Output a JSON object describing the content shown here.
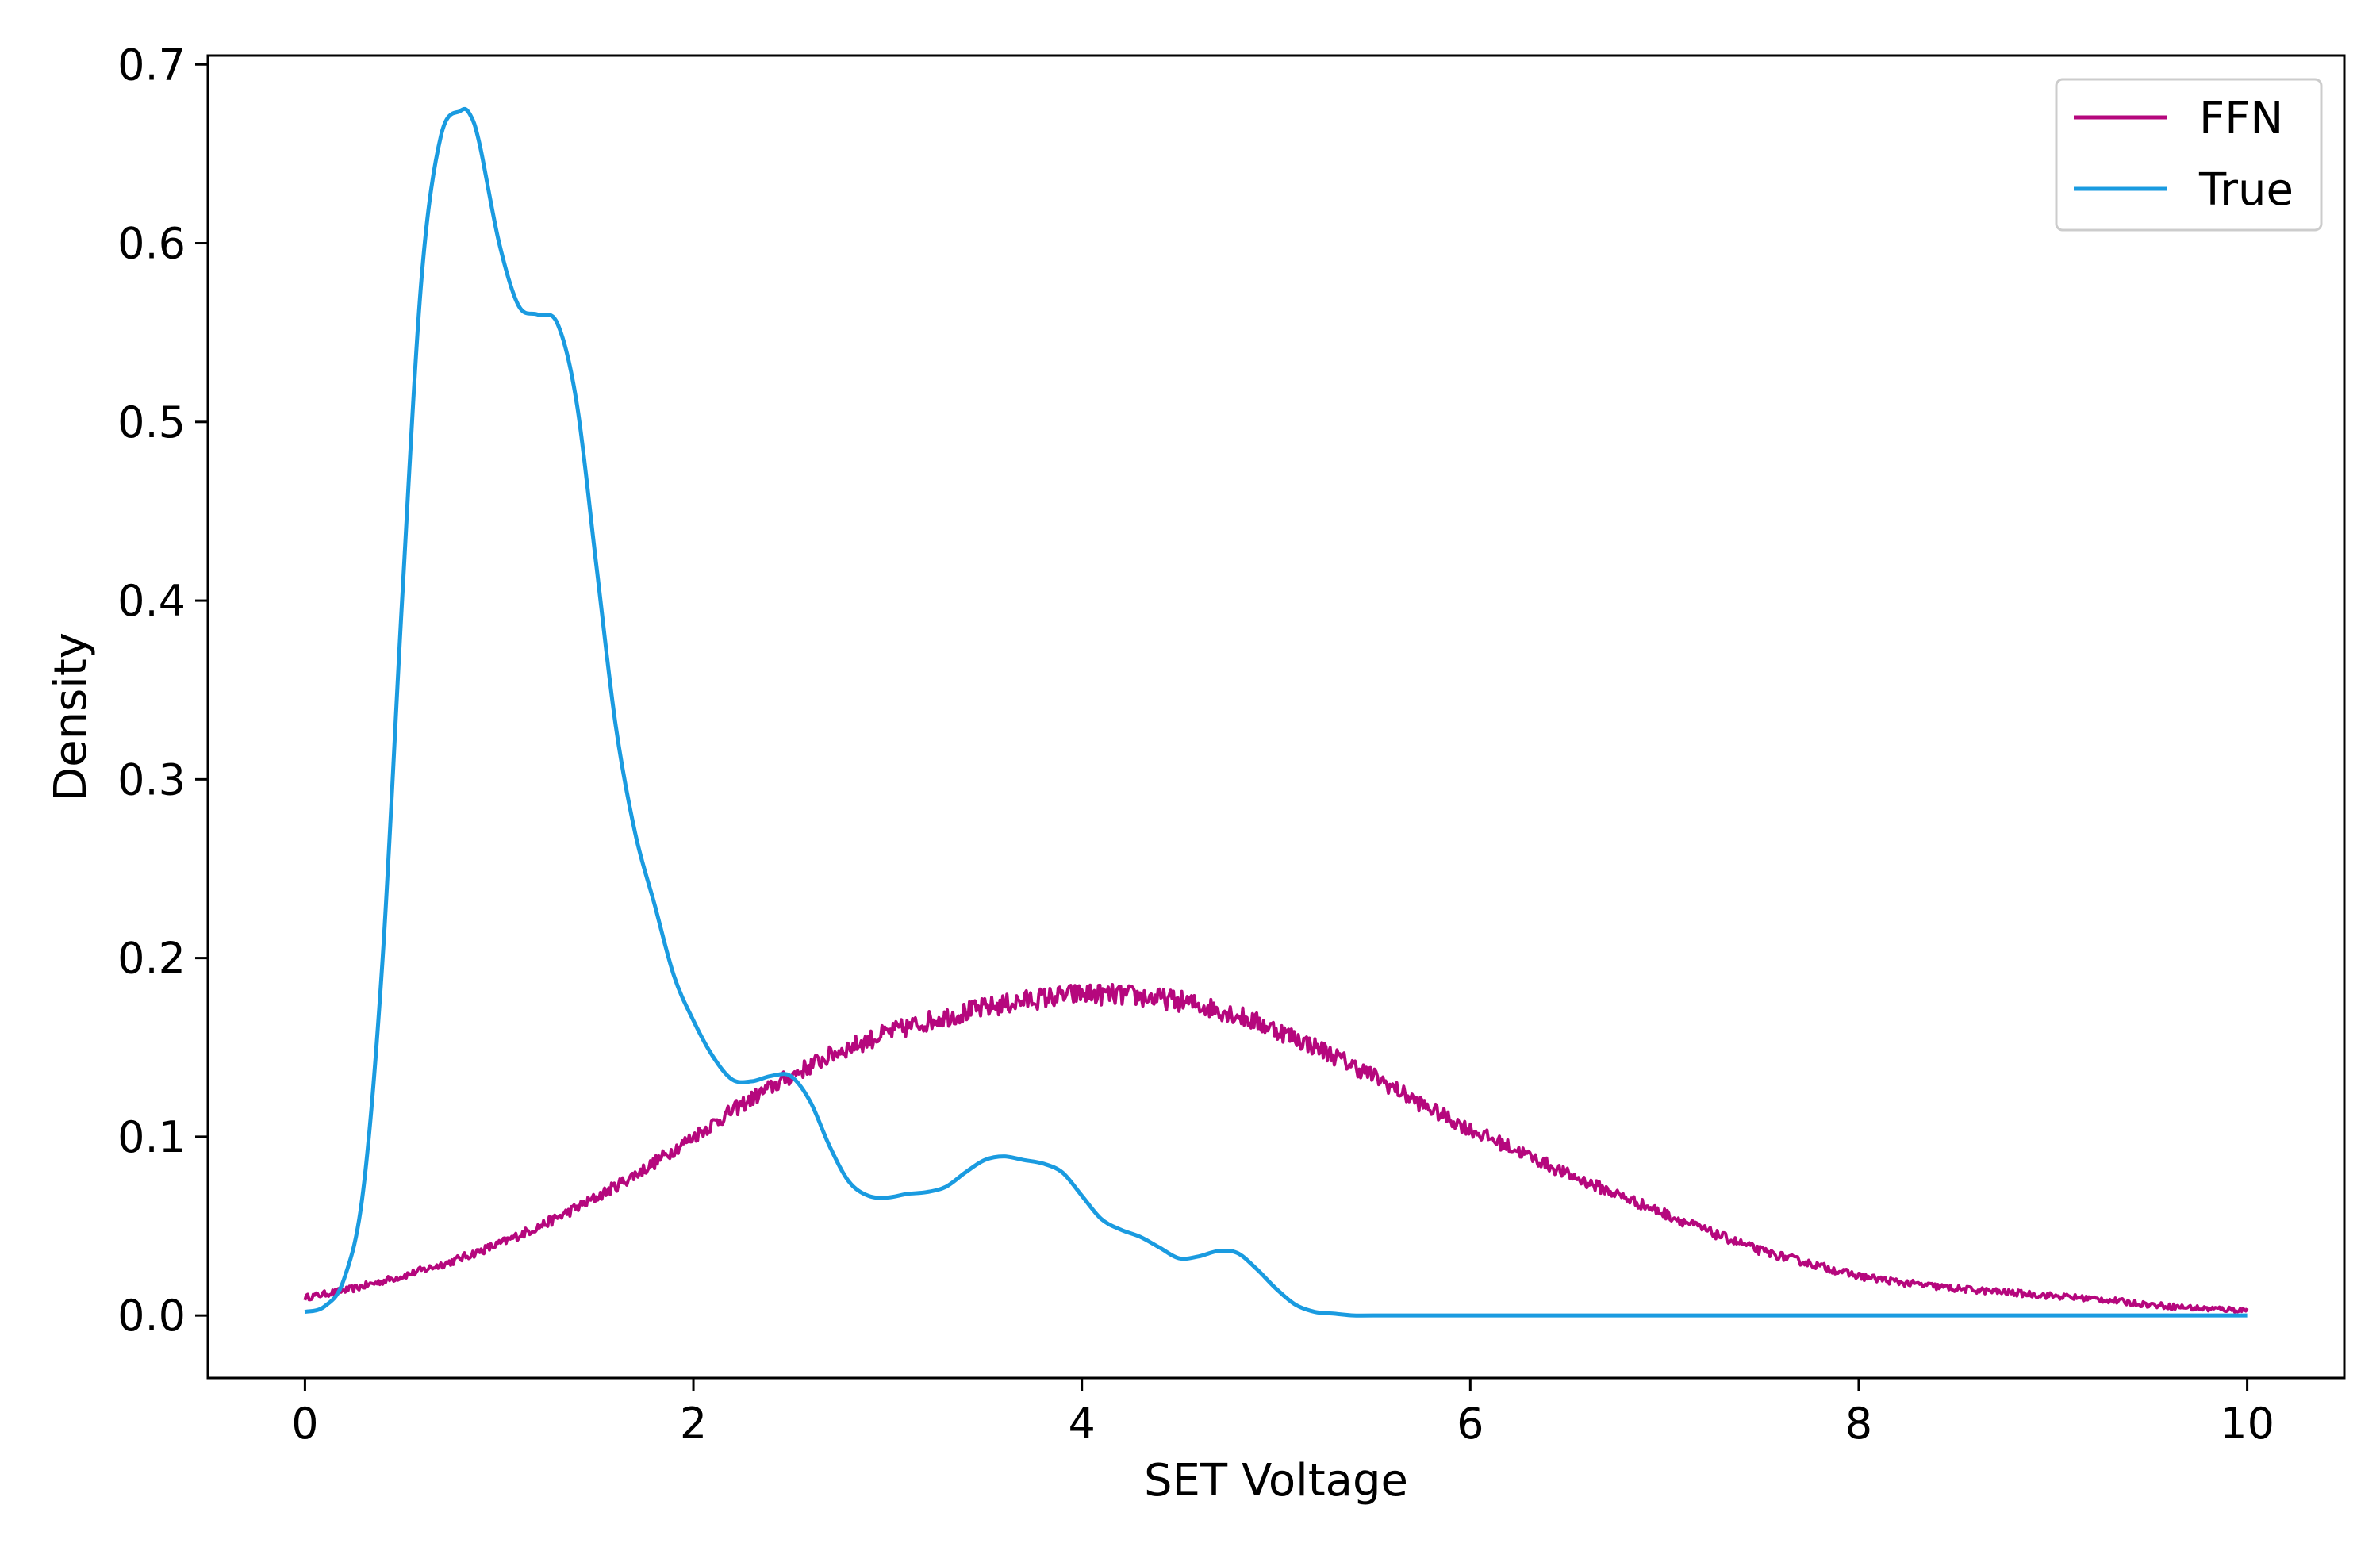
{
  "chart_data": {
    "type": "line",
    "title": "",
    "xlabel": "SET Voltage",
    "ylabel": "Density",
    "xlim": [
      -0.5,
      10.5
    ],
    "ylim": [
      -0.035,
      0.705
    ],
    "xticks": [
      0,
      2,
      4,
      6,
      8,
      10
    ],
    "xtick_labels": [
      "0",
      "2",
      "4",
      "6",
      "8",
      "10"
    ],
    "yticks": [
      0.0,
      0.1,
      0.2,
      0.3,
      0.4,
      0.5,
      0.6,
      0.7
    ],
    "ytick_labels": [
      "0.0",
      "0.1",
      "0.2",
      "0.3",
      "0.4",
      "0.5",
      "0.6",
      "0.7"
    ],
    "grid": false,
    "legend_position": "top-right",
    "series": [
      {
        "name": "FFN",
        "color": "#b5077d",
        "noisy": true,
        "x": [
          0,
          0.25,
          0.5,
          0.75,
          1.0,
          1.25,
          1.5,
          1.75,
          2.0,
          2.25,
          2.5,
          2.75,
          3.0,
          3.25,
          3.5,
          3.75,
          4.0,
          4.25,
          4.5,
          4.75,
          5.0,
          5.25,
          5.5,
          5.75,
          6.0,
          6.25,
          6.5,
          6.75,
          7.0,
          7.25,
          7.5,
          7.75,
          8.0,
          8.25,
          8.5,
          8.75,
          9.0,
          9.25,
          9.5,
          9.75,
          10.0
        ],
        "y": [
          0.01,
          0.015,
          0.022,
          0.03,
          0.04,
          0.052,
          0.066,
          0.082,
          0.1,
          0.118,
          0.134,
          0.148,
          0.158,
          0.166,
          0.172,
          0.177,
          0.18,
          0.179,
          0.176,
          0.17,
          0.16,
          0.148,
          0.134,
          0.118,
          0.104,
          0.092,
          0.079,
          0.068,
          0.057,
          0.046,
          0.036,
          0.029,
          0.022,
          0.018,
          0.015,
          0.013,
          0.011,
          0.009,
          0.006,
          0.004,
          0.003
        ]
      },
      {
        "name": "True",
        "color": "#1a9be0",
        "noisy": false,
        "x": [
          0,
          0.1,
          0.2,
          0.3,
          0.4,
          0.5,
          0.6,
          0.7,
          0.8,
          0.85,
          0.9,
          1.0,
          1.1,
          1.2,
          1.3,
          1.4,
          1.5,
          1.6,
          1.7,
          1.8,
          1.9,
          2.0,
          2.1,
          2.2,
          2.3,
          2.4,
          2.5,
          2.6,
          2.7,
          2.8,
          2.9,
          3.0,
          3.1,
          3.2,
          3.3,
          3.4,
          3.5,
          3.6,
          3.7,
          3.8,
          3.9,
          4.0,
          4.1,
          4.2,
          4.3,
          4.4,
          4.5,
          4.6,
          4.7,
          4.8,
          4.9,
          5.0,
          5.1,
          5.2,
          5.3,
          5.4,
          5.5,
          6.0,
          7.0,
          8.0,
          9.0,
          10.0
        ],
        "y": [
          0.002,
          0.005,
          0.02,
          0.07,
          0.2,
          0.4,
          0.58,
          0.66,
          0.674,
          0.672,
          0.655,
          0.6,
          0.565,
          0.56,
          0.555,
          0.51,
          0.42,
          0.33,
          0.27,
          0.23,
          0.19,
          0.165,
          0.145,
          0.132,
          0.131,
          0.134,
          0.134,
          0.12,
          0.095,
          0.075,
          0.067,
          0.066,
          0.068,
          0.069,
          0.072,
          0.08,
          0.087,
          0.089,
          0.087,
          0.085,
          0.08,
          0.067,
          0.054,
          0.048,
          0.044,
          0.038,
          0.032,
          0.033,
          0.036,
          0.035,
          0.026,
          0.015,
          0.006,
          0.002,
          0.001,
          0.0,
          0.0,
          0.0,
          0.0,
          0.0,
          0.0,
          0.0
        ]
      }
    ]
  }
}
